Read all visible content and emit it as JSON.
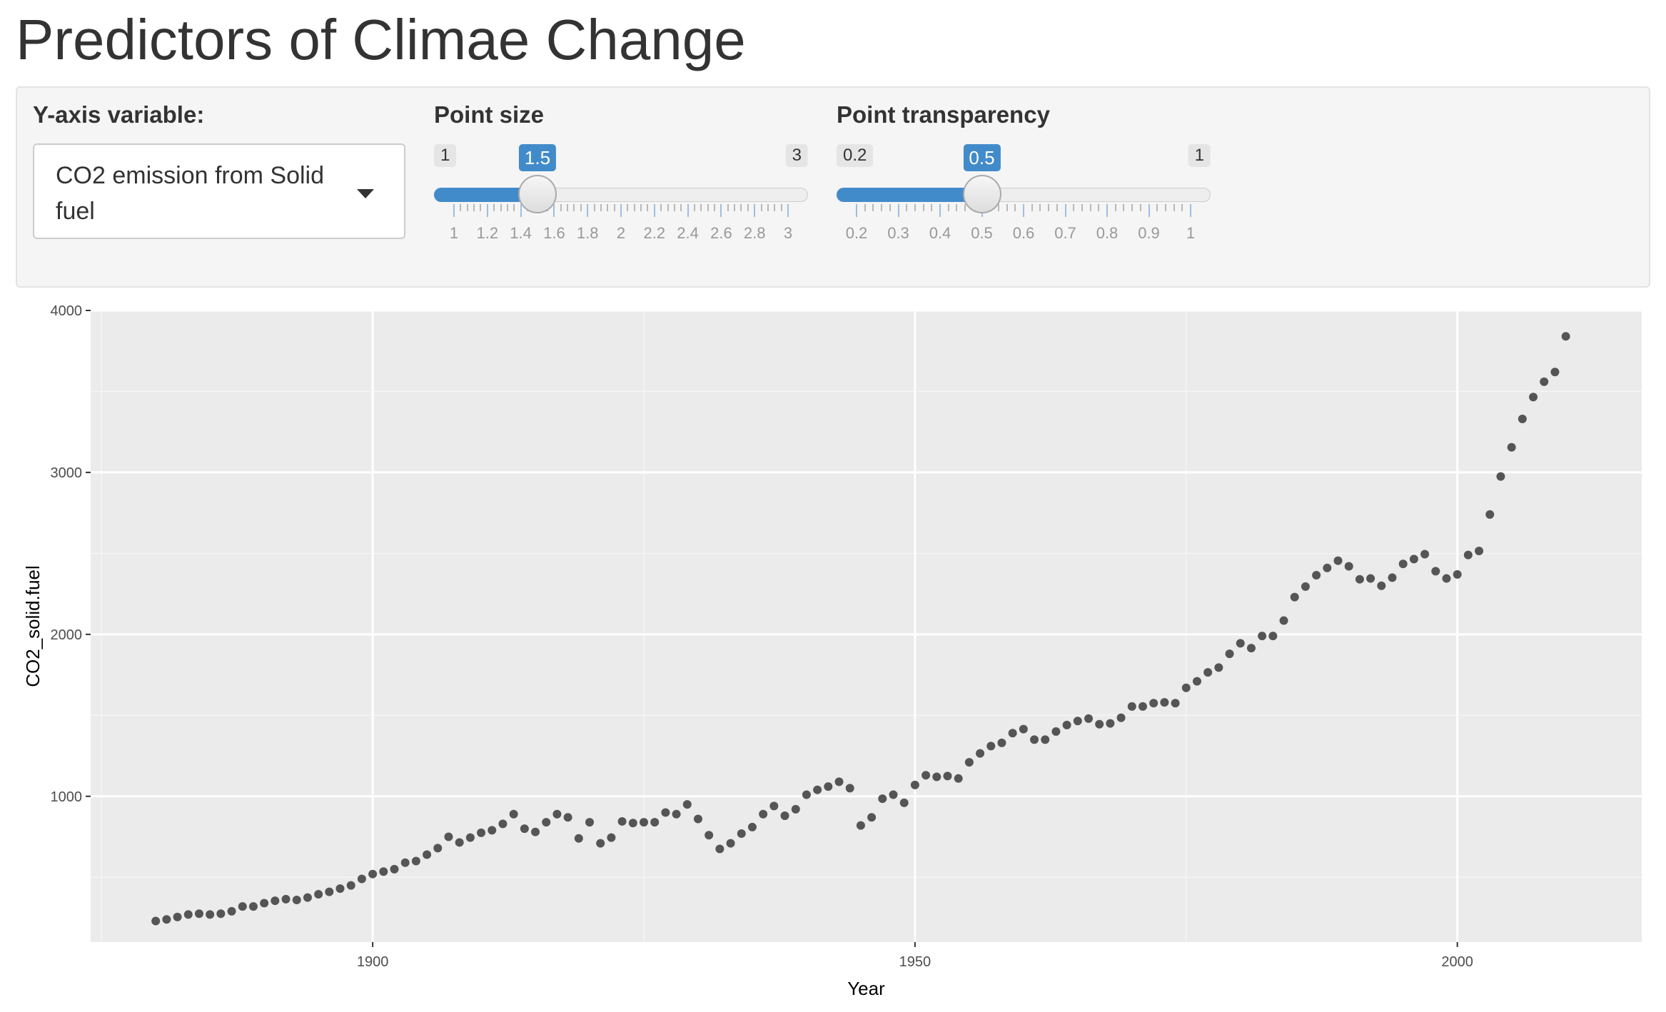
{
  "app": {
    "title": "Predictors of Climae Change"
  },
  "controls": {
    "y_axis_select": {
      "label": "Y-axis variable:",
      "value": "CO2 emission from Solid fuel"
    },
    "point_size": {
      "label": "Point size",
      "min": 1,
      "max": 3,
      "value": 1.5,
      "min_label": "1",
      "max_label": "3",
      "value_label": "1.5",
      "grid_labels": [
        "1",
        "1.2",
        "1.4",
        "1.6",
        "1.8",
        "2",
        "2.2",
        "2.4",
        "2.6",
        "2.8",
        "3"
      ]
    },
    "point_transparency": {
      "label": "Point transparency",
      "min": 0.2,
      "max": 1,
      "value": 0.5,
      "min_label": "0.2",
      "max_label": "1",
      "value_label": "0.5",
      "grid_labels": [
        "0.2",
        "0.3",
        "0.4",
        "0.5",
        "0.6",
        "0.7",
        "0.8",
        "0.9",
        "1"
      ]
    }
  },
  "colors": {
    "accent": "#428bca",
    "panel_bg": "#ebebeb",
    "point": "#555555"
  },
  "chart_data": {
    "type": "scatter",
    "xlabel": "Year",
    "ylabel": "CO2_solid.fuel",
    "x_ticks": [
      1900,
      1950,
      2000
    ],
    "y_ticks": [
      1000,
      2000,
      3000,
      4000
    ],
    "xlim": [
      1874,
      2017
    ],
    "ylim": [
      100,
      4000
    ],
    "grid": true,
    "series": [
      {
        "x": [
          1880,
          1881,
          1882,
          1883,
          1884,
          1885,
          1886,
          1887,
          1888,
          1889,
          1890,
          1891,
          1892,
          1893,
          1894,
          1895,
          1896,
          1897,
          1898,
          1899,
          1900,
          1901,
          1902,
          1903,
          1904,
          1905,
          1906,
          1907,
          1908,
          1909,
          1910,
          1911,
          1912,
          1913,
          1914,
          1915,
          1916,
          1917,
          1918,
          1919,
          1920,
          1921,
          1922,
          1923,
          1924,
          1925,
          1926,
          1927,
          1928,
          1929,
          1930,
          1931,
          1932,
          1933,
          1934,
          1935,
          1936,
          1937,
          1938,
          1939,
          1940,
          1941,
          1942,
          1943,
          1944,
          1945,
          1946,
          1947,
          1948,
          1949,
          1950,
          1951,
          1952,
          1953,
          1954,
          1955,
          1956,
          1957,
          1958,
          1959,
          1960,
          1961,
          1962,
          1963,
          1964,
          1965,
          1966,
          1967,
          1968,
          1969,
          1970,
          1971,
          1972,
          1973,
          1974,
          1975,
          1976,
          1977,
          1978,
          1979,
          1980,
          1981,
          1982,
          1983,
          1984,
          1985,
          1986,
          1987,
          1988,
          1989,
          1990,
          1991,
          1992,
          1993,
          1994,
          1995,
          1996,
          1997,
          1998,
          1999,
          2000,
          2001,
          2002,
          2003,
          2004,
          2005,
          2006,
          2007,
          2008,
          2009,
          2010
        ],
        "y": [
          230,
          240,
          255,
          270,
          275,
          270,
          275,
          290,
          320,
          320,
          340,
          355,
          365,
          360,
          375,
          395,
          410,
          430,
          450,
          490,
          520,
          535,
          550,
          590,
          600,
          640,
          680,
          750,
          715,
          745,
          775,
          790,
          830,
          890,
          800,
          780,
          840,
          890,
          870,
          740,
          840,
          710,
          745,
          845,
          835,
          840,
          840,
          900,
          890,
          950,
          860,
          760,
          675,
          710,
          770,
          810,
          890,
          940,
          880,
          920,
          1010,
          1040,
          1060,
          1090,
          1050,
          820,
          870,
          985,
          1010,
          960,
          1070,
          1130,
          1120,
          1125,
          1110,
          1210,
          1265,
          1310,
          1330,
          1390,
          1415,
          1350,
          1350,
          1400,
          1440,
          1465,
          1480,
          1445,
          1450,
          1485,
          1555,
          1555,
          1575,
          1580,
          1575,
          1670,
          1710,
          1765,
          1795,
          1880,
          1945,
          1915,
          1990,
          1990,
          2085,
          2230,
          2295,
          2365,
          2410,
          2455,
          2420,
          2340,
          2345,
          2300,
          2350,
          2435,
          2465,
          2495,
          2390,
          2345,
          2370,
          2490,
          2515,
          2740,
          2975,
          3155,
          3330,
          3465,
          3560,
          3620,
          3840
        ]
      }
    ]
  }
}
